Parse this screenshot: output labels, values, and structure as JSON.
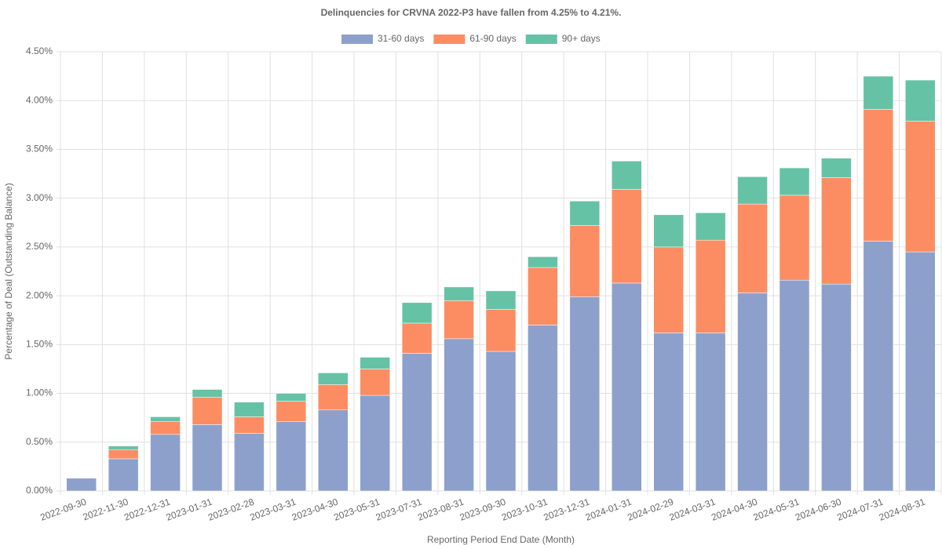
{
  "chart_data": {
    "type": "stacked_bar",
    "title": "Delinquencies for CRVNA 2022-P3 have fallen from 4.25% to 4.21%.",
    "x_label": "Reporting Period End Date (Month)",
    "y_label": "Percentage of Deal (Outstanding Balance)",
    "categories": [
      "2022-09-30",
      "2022-11-30",
      "2022-12-31",
      "2023-01-31",
      "2023-02-28",
      "2023-03-31",
      "2023-04-30",
      "2023-05-31",
      "2023-07-31",
      "2023-08-31",
      "2023-09-30",
      "2023-10-31",
      "2023-12-31",
      "2024-01-31",
      "2024-02-29",
      "2024-03-31",
      "2024-04-30",
      "2024-05-31",
      "2024-06-30",
      "2024-07-31",
      "2024-08-31"
    ],
    "series": [
      {
        "name": "31-60 days",
        "color": "#8da0cb",
        "values": [
          0.13,
          0.33,
          0.58,
          0.68,
          0.59,
          0.71,
          0.83,
          0.98,
          1.41,
          1.56,
          1.43,
          1.7,
          1.99,
          2.13,
          1.62,
          1.62,
          2.03,
          2.16,
          2.12,
          2.56,
          2.45
        ]
      },
      {
        "name": "61-90 days",
        "color": "#fc8d62",
        "values": [
          0,
          0.09,
          0.13,
          0.28,
          0.17,
          0.21,
          0.26,
          0.27,
          0.31,
          0.39,
          0.43,
          0.59,
          0.73,
          0.96,
          0.88,
          0.95,
          0.91,
          0.87,
          1.09,
          1.35,
          1.34
        ]
      },
      {
        "name": "90+ days",
        "color": "#66c2a5",
        "values": [
          0,
          0.04,
          0.05,
          0.08,
          0.15,
          0.08,
          0.12,
          0.12,
          0.21,
          0.14,
          0.19,
          0.11,
          0.25,
          0.29,
          0.33,
          0.28,
          0.28,
          0.28,
          0.2,
          0.34,
          0.42
        ]
      }
    ],
    "ylim": [
      0,
      4.5
    ],
    "yticks": [
      {
        "value": 0,
        "label": "0.00%"
      },
      {
        "value": 0.5,
        "label": "0.50%"
      },
      {
        "value": 1,
        "label": "1.00%"
      },
      {
        "value": 1.5,
        "label": "1.50%"
      },
      {
        "value": 2,
        "label": "2.00%"
      },
      {
        "value": 2.5,
        "label": "2.50%"
      },
      {
        "value": 3,
        "label": "3.00%"
      },
      {
        "value": 3.5,
        "label": "3.50%"
      },
      {
        "value": 4,
        "label": "4.00%"
      },
      {
        "value": 4.5,
        "label": "4.50%"
      }
    ],
    "grid": true,
    "legend": "top"
  }
}
